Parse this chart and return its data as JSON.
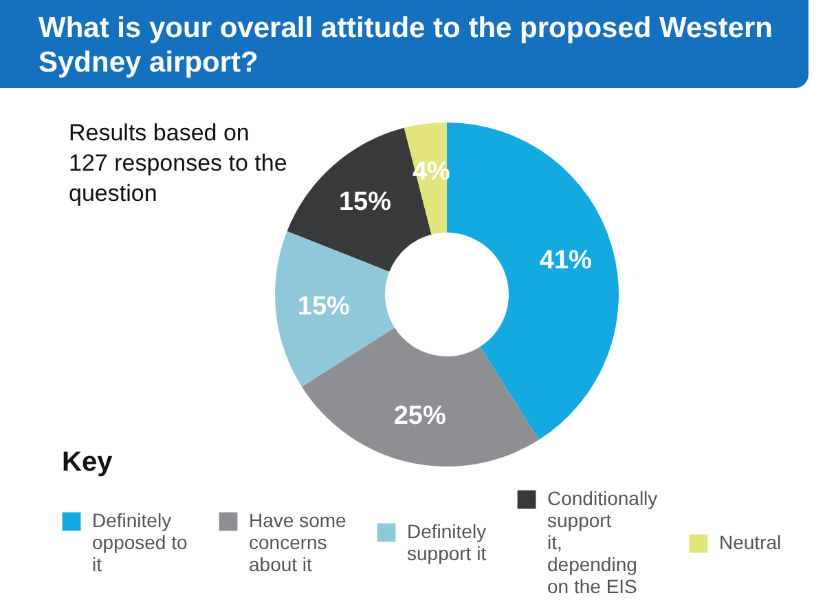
{
  "chart_data": {
    "type": "donut",
    "title": "What is your overall attitude to the proposed Western Sydney airport?",
    "annotations": [
      "Results based on 127 responses to the question"
    ],
    "legend_title": "Key",
    "categories": [
      "Definitely opposed to it",
      "Have some concerns about it",
      "Definitely support it",
      "Conditionally support it, depending on the EIS",
      "Neutral"
    ],
    "values": [
      41,
      25,
      15,
      15,
      4
    ],
    "value_labels": [
      "41%",
      "25%",
      "15%",
      "15%",
      "4%"
    ],
    "colors": [
      "#14a9e0",
      "#8e8f93",
      "#8fc9d9",
      "#38393b",
      "#e2e57c"
    ],
    "legend": "bottom"
  }
}
